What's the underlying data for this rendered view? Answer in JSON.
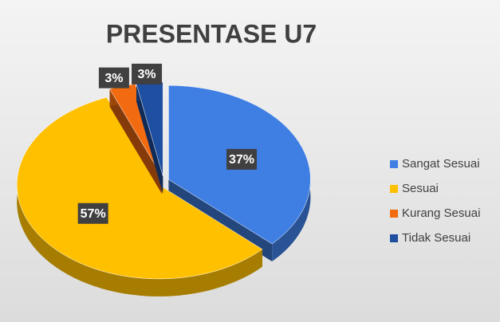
{
  "chart_data": {
    "type": "pie",
    "title": "PRESENTASE U7",
    "categories": [
      "Sangat Sesuai",
      "Sesuai",
      "Kurang Sesuai",
      "Tidak Sesuai"
    ],
    "values": [
      37,
      57,
      3,
      3
    ],
    "value_labels": [
      "37%",
      "57%",
      "3%",
      "3%"
    ],
    "colors": [
      "#3f7fe3",
      "#ffc000",
      "#f26b10",
      "#1f4fa0"
    ],
    "legend": "right"
  }
}
